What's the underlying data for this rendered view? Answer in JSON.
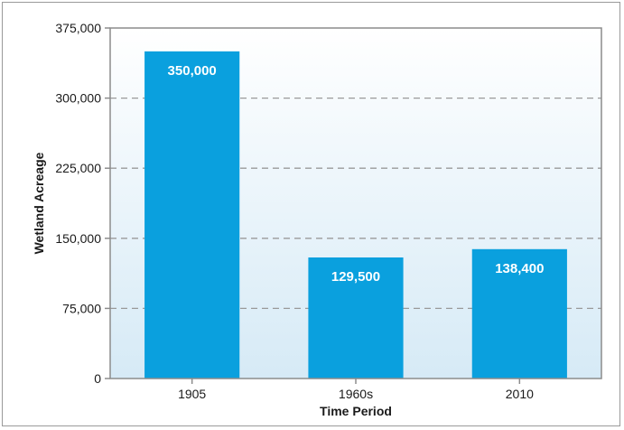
{
  "chart_data": {
    "type": "bar",
    "categories": [
      "1905",
      "1960s",
      "2010"
    ],
    "values": [
      350000,
      129500,
      138400
    ],
    "data_labels": [
      "350,000",
      "129,500",
      "138,400"
    ],
    "xlabel": "Time Period",
    "ylabel": "Wetland Acreage",
    "ylim": [
      0,
      375000
    ],
    "yticks": [
      0,
      75000,
      150000,
      225000,
      300000,
      375000
    ],
    "ytick_labels": [
      "0",
      "75,000",
      "150,000",
      "225,000",
      "300,000",
      "375,000"
    ],
    "grid": "horizontal dashed",
    "colors": {
      "bar": "#0aa0de",
      "grid": "#9a9a9a",
      "plot_bg_top": "#ffffff",
      "plot_bg_bottom": "#d6eaf6",
      "data_label": "#ffffff",
      "text": "#1a1a1a"
    }
  }
}
